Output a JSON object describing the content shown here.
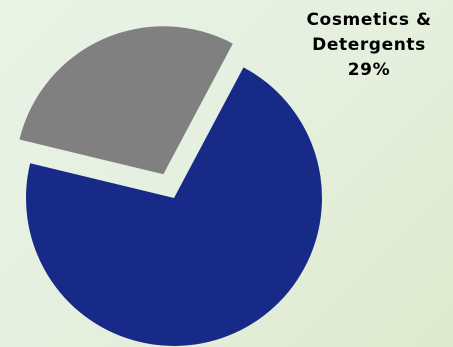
{
  "chart_data": {
    "type": "pie",
    "slices": [
      {
        "label": "",
        "value": 71,
        "color": "#172a87",
        "exploded": false
      },
      {
        "label": "Cosmetics & Detergents",
        "value": 29,
        "color": "#808080",
        "exploded": true
      }
    ],
    "data_labels": [
      {
        "line1": "Cosmetics &",
        "line2": "Detergents",
        "value_text": "29%"
      }
    ],
    "legend": "none",
    "grid": false
  }
}
